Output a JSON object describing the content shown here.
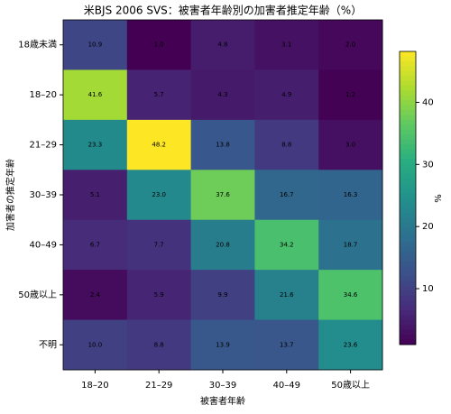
{
  "chart_data": {
    "type": "heatmap",
    "title": "米BJS 2006 SVS：被害者年齢別の加害者推定年齢（%）",
    "x_label": "被害者年齢",
    "y_label": "加害者の推定年齢",
    "categories": [
      "18–20",
      "21–29",
      "30–39",
      "40–49",
      "50歳以上"
    ],
    "y_categories": [
      "18歳未満",
      "18–20",
      "21–29",
      "30–39",
      "40–49",
      "50歳以上",
      "不明"
    ],
    "values": [
      [
        10.9,
        1.0,
        4.8,
        3.1,
        2.0
      ],
      [
        41.6,
        5.7,
        4.3,
        4.9,
        1.2
      ],
      [
        23.3,
        48.2,
        13.8,
        8.8,
        3.0
      ],
      [
        5.1,
        23.0,
        37.6,
        16.7,
        16.3
      ],
      [
        6.7,
        7.7,
        20.8,
        34.2,
        18.7
      ],
      [
        2.4,
        5.9,
        9.9,
        21.6,
        34.6
      ],
      [
        10.0,
        8.8,
        13.9,
        13.7,
        23.6
      ]
    ],
    "value_labels": [
      [
        "10.9",
        "1.0",
        "4.8",
        "3.1",
        "2.0"
      ],
      [
        "41.6",
        "5.7",
        "4.3",
        "4.9",
        "1.2"
      ],
      [
        "23.3",
        "48.2",
        "13.8",
        "8.8",
        "3.0"
      ],
      [
        "5.1",
        "23.0",
        "37.6",
        "16.7",
        "16.3"
      ],
      [
        "6.7",
        "7.7",
        "20.8",
        "34.2",
        "18.7"
      ],
      [
        "2.4",
        "5.9",
        "9.9",
        "21.6",
        "34.6"
      ],
      [
        "10.0",
        "8.8",
        "13.9",
        "13.7",
        "23.6"
      ]
    ],
    "colormap": "viridis",
    "clim": [
      1.0,
      48.2
    ],
    "colorbar_ticks": [
      10,
      20,
      30,
      40
    ],
    "colorbar_label": "%"
  }
}
